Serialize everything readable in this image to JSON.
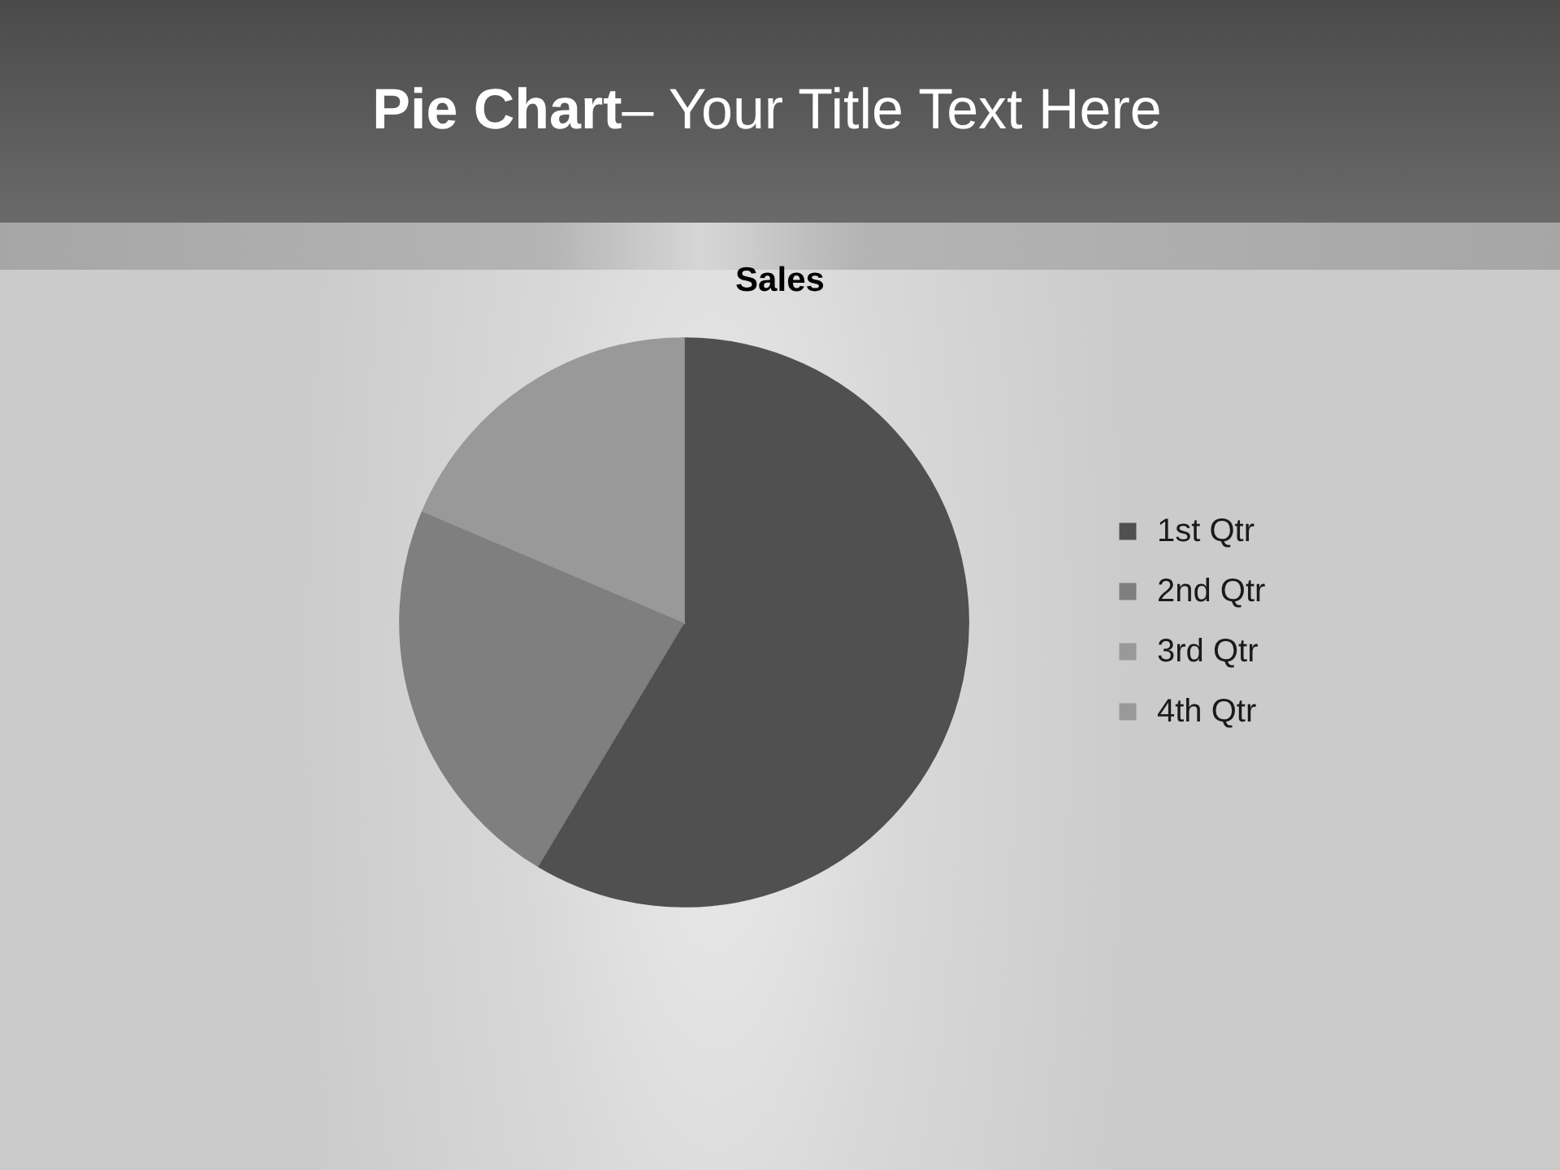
{
  "chart_data": {
    "type": "pie",
    "title": "Pie Chart– Your Title Text Here",
    "subtitle": "Sales",
    "categories": [
      "1st Qtr",
      "2nd Qtr",
      "3rd Qtr",
      "4th Qtr"
    ],
    "values": [
      58.6,
      22.8,
      10.0,
      8.6
    ],
    "colors": [
      "#505050",
      "#7f7f7f",
      "#999999",
      "#999999"
    ],
    "legend": "right"
  }
}
